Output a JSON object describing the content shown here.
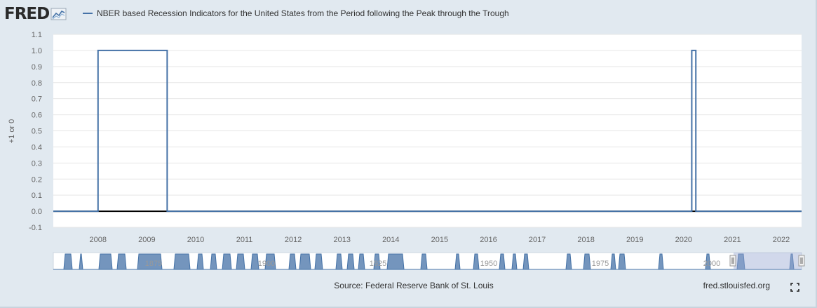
{
  "header": {
    "logo_text": "FRED",
    "logo_icon": "fred-chart-icon",
    "legend_label": "NBER based Recession Indicators for the United States from the Period following the Peak through the Trough",
    "legend_color": "#4572a7"
  },
  "footer": {
    "source": "Source: Federal Reserve Bank of St. Louis",
    "credit": "fred.stlouisfed.org",
    "fullscreen_icon": "fullscreen-icon"
  },
  "chart_data": {
    "type": "line",
    "step": true,
    "title": "NBER based Recession Indicators for the United States from the Period following the Peak through the Trough",
    "xlabel": "",
    "ylabel": "+1 or 0",
    "xlim": [
      "2007-02-01",
      "2022-06-01"
    ],
    "ylim": [
      -0.1,
      1.1
    ],
    "y_ticks": [
      -0.1,
      0.0,
      0.1,
      0.2,
      0.3,
      0.4,
      0.5,
      0.6,
      0.7,
      0.8,
      0.9,
      1.0,
      1.1
    ],
    "x_ticks": [
      "2008",
      "2009",
      "2010",
      "2011",
      "2012",
      "2013",
      "2014",
      "2015",
      "2016",
      "2017",
      "2018",
      "2019",
      "2020",
      "2021",
      "2022"
    ],
    "grid": true,
    "series": [
      {
        "color": "#4572a7",
        "points": [
          [
            "2007-02-01",
            0
          ],
          [
            "2008-01-01",
            0
          ],
          [
            "2008-01-01",
            1
          ],
          [
            "2009-06-01",
            1
          ],
          [
            "2009-06-01",
            0
          ],
          [
            "2020-03-01",
            0
          ],
          [
            "2020-03-01",
            1
          ],
          [
            "2020-04-01",
            1
          ],
          [
            "2020-04-01",
            0
          ],
          [
            "2022-06-01",
            0
          ]
        ]
      }
    ],
    "navigator": {
      "labels": [
        "1875",
        "1900",
        "1925",
        "1950",
        "1975",
        "2000"
      ],
      "color": "#4572a7"
    }
  }
}
